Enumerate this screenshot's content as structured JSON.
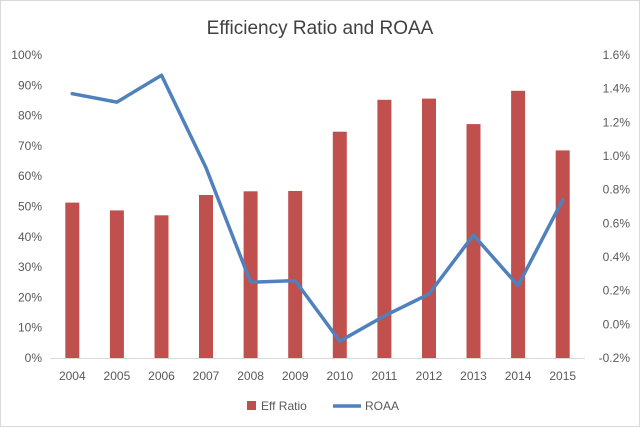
{
  "chart_data": {
    "type": "bar",
    "title": "Efficiency Ratio and ROAA",
    "categories": [
      "2004",
      "2005",
      "2006",
      "2007",
      "2008",
      "2009",
      "2010",
      "2011",
      "2012",
      "2013",
      "2014",
      "2015"
    ],
    "series": [
      {
        "name": "Eff Ratio",
        "type": "bar",
        "axis": "left",
        "color": "#c0504d",
        "values": [
          51.3,
          48.7,
          47.1,
          53.8,
          55.0,
          55.1,
          74.7,
          85.2,
          85.6,
          77.2,
          88.2,
          68.5
        ]
      },
      {
        "name": "ROAA",
        "type": "line",
        "axis": "right",
        "color": "#4f81bd",
        "values": [
          1.37,
          1.32,
          1.48,
          0.93,
          0.25,
          0.26,
          -0.1,
          0.05,
          0.18,
          0.53,
          0.23,
          0.74
        ]
      }
    ],
    "y_left": {
      "ylim": [
        0,
        100
      ],
      "ticks": [
        0,
        10,
        20,
        30,
        40,
        50,
        60,
        70,
        80,
        90,
        100
      ],
      "tick_labels": [
        "0%",
        "10%",
        "20%",
        "30%",
        "40%",
        "50%",
        "60%",
        "70%",
        "80%",
        "90%",
        "100%"
      ]
    },
    "y_right": {
      "ylim": [
        -0.2,
        1.6
      ],
      "ticks": [
        -0.2,
        0.0,
        0.2,
        0.4,
        0.6,
        0.8,
        1.0,
        1.2,
        1.4,
        1.6
      ],
      "tick_labels": [
        "-0.2%",
        "0.0%",
        "0.2%",
        "0.4%",
        "0.6%",
        "0.8%",
        "1.0%",
        "1.2%",
        "1.4%",
        "1.6%"
      ]
    },
    "grid": false,
    "legend_position": "bottom"
  }
}
